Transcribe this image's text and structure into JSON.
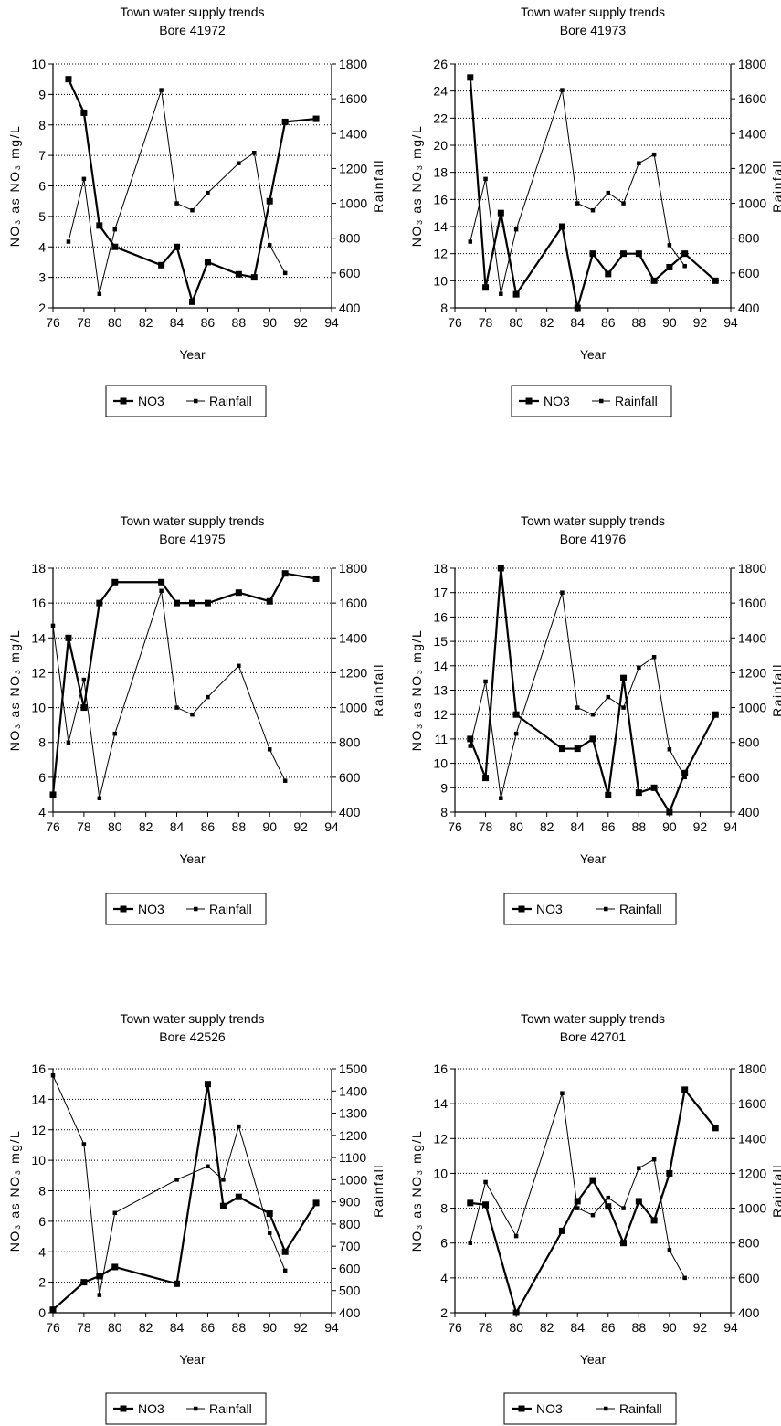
{
  "chart_data": [
    {
      "type": "line",
      "title": [
        "Town water supply trends",
        "Bore 41972"
      ],
      "xlabel": "Year",
      "ylabel": "NO₃ as NO₃ mg/L",
      "y2label": "Rainfall",
      "xlim": [
        76,
        94
      ],
      "xticks": [
        "76",
        "78",
        "80",
        "82",
        "84",
        "86",
        "88",
        "90",
        "92",
        "94"
      ],
      "ylim": [
        2,
        10
      ],
      "yticks": [
        "2",
        "3",
        "4",
        "5",
        "6",
        "7",
        "8",
        "9",
        "10"
      ],
      "y2lim": [
        400,
        1800
      ],
      "y2ticks": [
        "400",
        "600",
        "800",
        "1000",
        "1200",
        "1400",
        "1600",
        "1800"
      ],
      "grid": "horizontal dotted",
      "legend": [
        "NO3",
        "Rainfall"
      ],
      "series": [
        {
          "name": "NO3",
          "axis": "left",
          "x": [
            77,
            78,
            79,
            80,
            83,
            84,
            85,
            86,
            88,
            89,
            90,
            91,
            93
          ],
          "y": [
            9.5,
            8.4,
            4.7,
            4.0,
            3.4,
            4.0,
            2.2,
            3.5,
            3.1,
            3.0,
            5.5,
            8.1,
            8.2
          ]
        },
        {
          "name": "Rainfall",
          "axis": "right",
          "x": [
            77,
            78,
            79,
            80,
            83,
            84,
            85,
            86,
            88,
            89,
            90,
            91
          ],
          "y": [
            780,
            1140,
            480,
            850,
            1650,
            1000,
            960,
            1060,
            1230,
            1290,
            760,
            600
          ]
        }
      ]
    },
    {
      "type": "line",
      "title": [
        "Town water supply trends",
        "Bore 41973"
      ],
      "xlabel": "Year",
      "ylabel": "NO₃ as NO₃ mg/L",
      "y2label": "Rainfall",
      "xlim": [
        76,
        94
      ],
      "xticks": [
        "76",
        "78",
        "80",
        "82",
        "84",
        "86",
        "88",
        "90",
        "92",
        "94"
      ],
      "ylim": [
        8,
        26
      ],
      "yticks": [
        "8",
        "10",
        "12",
        "14",
        "16",
        "18",
        "20",
        "22",
        "24",
        "26"
      ],
      "y2lim": [
        400,
        1800
      ],
      "y2ticks": [
        "400",
        "600",
        "800",
        "1000",
        "1200",
        "1400",
        "1600",
        "1800"
      ],
      "grid": "horizontal dotted",
      "legend": [
        "NO3",
        "Rainfall"
      ],
      "series": [
        {
          "name": "NO3",
          "axis": "left",
          "x": [
            77,
            78,
            79,
            80,
            83,
            84,
            85,
            86,
            87,
            88,
            89,
            90,
            91,
            93
          ],
          "y": [
            25,
            9.5,
            15,
            9,
            14,
            8,
            12,
            10.5,
            12,
            12,
            10,
            11,
            12,
            10
          ]
        },
        {
          "name": "Rainfall",
          "axis": "right",
          "x": [
            77,
            78,
            79,
            80,
            83,
            84,
            85,
            86,
            87,
            88,
            89,
            90,
            91
          ],
          "y": [
            780,
            1140,
            480,
            850,
            1650,
            1000,
            960,
            1060,
            1000,
            1230,
            1280,
            760,
            640
          ]
        }
      ]
    },
    {
      "type": "line",
      "title": [
        "Town water supply trends",
        "Bore 41975"
      ],
      "xlabel": "Year",
      "ylabel": "NO₃ as NO₃ mg/L",
      "y2label": "Rainfall",
      "xlim": [
        76,
        94
      ],
      "xticks": [
        "76",
        "78",
        "80",
        "82",
        "84",
        "86",
        "88",
        "90",
        "92",
        "94"
      ],
      "ylim": [
        4,
        18
      ],
      "yticks": [
        "4",
        "6",
        "8",
        "10",
        "12",
        "14",
        "16",
        "18"
      ],
      "y2lim": [
        400,
        1800
      ],
      "y2ticks": [
        "400",
        "600",
        "800",
        "1000",
        "1200",
        "1400",
        "1600",
        "1800"
      ],
      "grid": "horizontal dotted",
      "legend": [
        "NO3",
        "Rainfall"
      ],
      "series": [
        {
          "name": "NO3",
          "axis": "left",
          "x": [
            76,
            77,
            78,
            79,
            80,
            83,
            84,
            85,
            86,
            88,
            90,
            91,
            93
          ],
          "y": [
            5,
            14,
            10,
            16,
            17.2,
            17.2,
            16,
            16,
            16,
            16.6,
            16.1,
            17.7,
            17.4
          ]
        },
        {
          "name": "Rainfall",
          "axis": "right",
          "x": [
            76,
            77,
            78,
            79,
            80,
            83,
            84,
            85,
            86,
            88,
            90,
            91
          ],
          "y": [
            1470,
            800,
            1160,
            480,
            850,
            1670,
            1000,
            960,
            1060,
            1240,
            760,
            580
          ]
        }
      ]
    },
    {
      "type": "line",
      "title": [
        "Town water supply trends",
        "Bore 41976"
      ],
      "xlabel": "Year",
      "ylabel": "NO₃ as NO₃ mg/L",
      "y2label": "Rainfall",
      "xlim": [
        76,
        94
      ],
      "xticks": [
        "76",
        "78",
        "80",
        "82",
        "84",
        "86",
        "88",
        "90",
        "92",
        "94"
      ],
      "ylim": [
        8,
        18
      ],
      "yticks": [
        "8",
        "9",
        "10",
        "11",
        "12",
        "13",
        "14",
        "15",
        "16",
        "17",
        "18"
      ],
      "y2lim": [
        400,
        1800
      ],
      "y2ticks": [
        "400",
        "600",
        "800",
        "1000",
        "1200",
        "1400",
        "1600",
        "1800"
      ],
      "grid": "horizontal dotted",
      "legend": [
        "NO3",
        "Rainfall"
      ],
      "series": [
        {
          "name": "NO3",
          "axis": "left",
          "x": [
            77,
            78,
            79,
            80,
            83,
            84,
            85,
            86,
            87,
            88,
            89,
            90,
            91,
            93
          ],
          "y": [
            11,
            9.4,
            18,
            12,
            10.6,
            10.6,
            11,
            8.7,
            13.5,
            8.8,
            9,
            8,
            9.6,
            12
          ]
        },
        {
          "name": "Rainfall",
          "axis": "right",
          "x": [
            77,
            78,
            79,
            80,
            83,
            84,
            85,
            86,
            87,
            88,
            89,
            90,
            91
          ],
          "y": [
            780,
            1150,
            480,
            850,
            1660,
            1000,
            960,
            1060,
            1000,
            1230,
            1290,
            760,
            600
          ]
        }
      ]
    },
    {
      "type": "line",
      "title": [
        "Town water supply trends",
        "Bore 42526"
      ],
      "xlabel": "Year",
      "ylabel": "NO₃ as NO₃ mg/L",
      "y2label": "Rainfall",
      "xlim": [
        76,
        94
      ],
      "xticks": [
        "76",
        "78",
        "80",
        "82",
        "84",
        "86",
        "88",
        "90",
        "92",
        "94"
      ],
      "ylim": [
        0,
        16
      ],
      "yticks": [
        "0",
        "2",
        "4",
        "6",
        "8",
        "10",
        "12",
        "14",
        "16"
      ],
      "y2lim": [
        400,
        1500
      ],
      "y2ticks": [
        "400",
        "500",
        "600",
        "700",
        "800",
        "900",
        "1000",
        "1100",
        "1200",
        "1300",
        "1400",
        "1500"
      ],
      "grid": "horizontal dotted",
      "legend": [
        "NO3",
        "Rainfall"
      ],
      "series": [
        {
          "name": "NO3",
          "axis": "left",
          "x": [
            76,
            78,
            79,
            80,
            84,
            86,
            87,
            88,
            90,
            91,
            93
          ],
          "y": [
            0.2,
            2,
            2.4,
            3,
            1.9,
            15,
            7,
            7.6,
            6.5,
            4,
            7.2
          ]
        },
        {
          "name": "Rainfall",
          "axis": "right",
          "x": [
            76,
            78,
            79,
            80,
            84,
            86,
            87,
            88,
            90,
            91
          ],
          "y": [
            1470,
            1160,
            480,
            850,
            1000,
            1060,
            1000,
            1240,
            760,
            590
          ]
        }
      ]
    },
    {
      "type": "line",
      "title": [
        "Town water supply trends",
        "Bore 42701"
      ],
      "xlabel": "Year",
      "ylabel": "NO₃ as NO₃ mg/L",
      "y2label": "Rainfall",
      "xlim": [
        76,
        94
      ],
      "xticks": [
        "76",
        "78",
        "80",
        "82",
        "84",
        "86",
        "88",
        "90",
        "92",
        "94"
      ],
      "ylim": [
        2,
        16
      ],
      "yticks": [
        "2",
        "4",
        "6",
        "8",
        "10",
        "12",
        "14",
        "16"
      ],
      "y2lim": [
        400,
        1800
      ],
      "y2ticks": [
        "400",
        "600",
        "800",
        "1000",
        "1200",
        "1400",
        "1600",
        "1800"
      ],
      "grid": "horizontal dotted",
      "legend": [
        "NO3",
        "Rainfall"
      ],
      "series": [
        {
          "name": "NO3",
          "axis": "left",
          "x": [
            77,
            78,
            80,
            83,
            84,
            85,
            86,
            87,
            88,
            89,
            90,
            91,
            93
          ],
          "y": [
            8.3,
            8.2,
            2,
            6.7,
            8.4,
            9.6,
            8.1,
            6,
            8.4,
            7.3,
            10,
            14.8,
            12.6
          ]
        },
        {
          "name": "Rainfall",
          "axis": "right",
          "x": [
            77,
            78,
            80,
            83,
            84,
            85,
            86,
            87,
            88,
            89,
            90,
            91
          ],
          "y": [
            800,
            1150,
            840,
            1660,
            1000,
            960,
            1060,
            1000,
            1230,
            1280,
            760,
            600
          ]
        }
      ]
    }
  ]
}
